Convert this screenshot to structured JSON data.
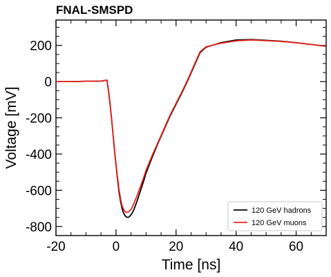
{
  "chart_data": {
    "type": "line",
    "title": "FNAL-SMSPD",
    "xlabel": "Time [ns]",
    "ylabel": "Voltage [mV]",
    "xlim": [
      -20,
      70
    ],
    "ylim": [
      -850,
      340
    ],
    "xticks": [
      -20,
      0,
      20,
      40,
      60
    ],
    "yticks": [
      -800,
      -600,
      -400,
      -200,
      0,
      200
    ],
    "xtick_labels": [
      "-20",
      "0",
      "20",
      "40",
      "60"
    ],
    "ytick_labels": [
      "-800",
      "-600",
      "-400",
      "-200",
      "0",
      "200"
    ],
    "grid": false,
    "legend_position": "lower-right",
    "series": [
      {
        "name": "120 GeV hadrons",
        "color": "#000000",
        "x": [
          -20,
          -15,
          -10,
          -5,
          -3,
          -2.5,
          -2,
          -1.5,
          -1,
          -0.5,
          0,
          0.5,
          1,
          1.5,
          2,
          2.5,
          3,
          3.5,
          4,
          4.5,
          5,
          5.5,
          6,
          7,
          8,
          9,
          10,
          12,
          14,
          16,
          18,
          20,
          22,
          24,
          26,
          28,
          30,
          35,
          40,
          45,
          50,
          55,
          60,
          65,
          70
        ],
        "y": [
          0,
          0,
          2,
          3,
          8,
          -50,
          -120,
          -200,
          -290,
          -380,
          -460,
          -540,
          -610,
          -660,
          -700,
          -725,
          -740,
          -748,
          -750,
          -745,
          -735,
          -722,
          -705,
          -660,
          -610,
          -560,
          -505,
          -420,
          -340,
          -265,
          -190,
          -125,
          -60,
          10,
          85,
          160,
          190,
          215,
          230,
          232,
          228,
          223,
          215,
          205,
          195
        ]
      },
      {
        "name": "120 GeV muons",
        "color": "#e8221c",
        "x": [
          -20,
          -15,
          -10,
          -5,
          -3,
          -2.5,
          -2,
          -1.5,
          -1,
          -0.5,
          0,
          0.5,
          1,
          1.5,
          2,
          2.5,
          3,
          3.5,
          4,
          4.5,
          5,
          5.5,
          6,
          7,
          8,
          9,
          10,
          12,
          14,
          16,
          18,
          20,
          22,
          24,
          26,
          28,
          30,
          35,
          40,
          45,
          50,
          55,
          60,
          65,
          70
        ],
        "y": [
          0,
          0,
          2,
          3,
          8,
          -55,
          -125,
          -205,
          -290,
          -375,
          -455,
          -530,
          -595,
          -645,
          -685,
          -705,
          -718,
          -722,
          -720,
          -715,
          -705,
          -690,
          -672,
          -630,
          -585,
          -540,
          -490,
          -410,
          -335,
          -260,
          -185,
          -120,
          -55,
          15,
          90,
          165,
          192,
          212,
          225,
          230,
          226,
          222,
          214,
          205,
          196
        ]
      }
    ]
  }
}
